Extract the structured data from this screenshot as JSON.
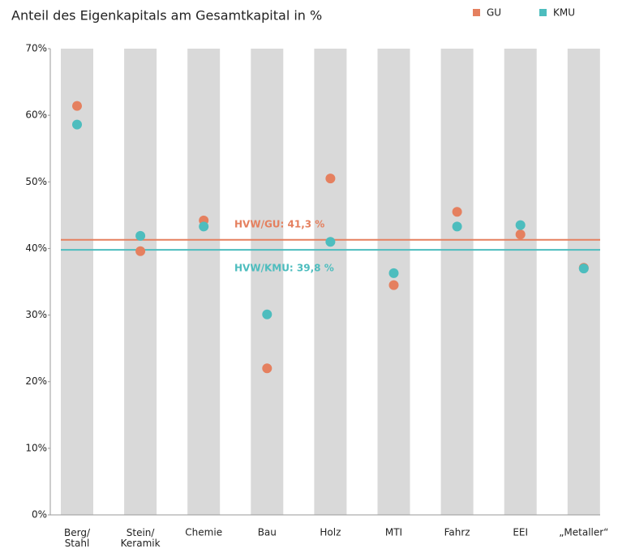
{
  "chart_data": {
    "type": "dot",
    "title": "Anteil des Eigenkapitals am Gesamtkapital in %",
    "categories": [
      "Berg/\nStahl",
      "Stein/\nKeramik",
      "Chemie",
      "Bau",
      "Holz",
      "MTI",
      "Fahrz",
      "EEI",
      "„Metaller“"
    ],
    "series": [
      {
        "name": "GU",
        "color": "#e5805f",
        "values": [
          61.4,
          39.6,
          44.2,
          22.0,
          50.5,
          34.5,
          45.5,
          42.1,
          37.1
        ]
      },
      {
        "name": "KMU",
        "color": "#4dbdbe",
        "values": [
          58.6,
          41.9,
          43.3,
          30.1,
          41.0,
          36.3,
          43.3,
          43.5,
          37.0
        ]
      }
    ],
    "reference_lines": [
      {
        "value": 41.3,
        "label": "HVW/GU: 41,3 %",
        "color": "#e5805f"
      },
      {
        "value": 39.8,
        "label": "HVW/KMU: 39,8 %",
        "color": "#4dbdbe"
      }
    ],
    "ylim": [
      0,
      70
    ],
    "yticks": [
      {
        "value": 0,
        "label": "0%"
      },
      {
        "value": 10,
        "label": "10%"
      },
      {
        "value": 20,
        "label": "20%"
      },
      {
        "value": 30,
        "label": "30%"
      },
      {
        "value": 40,
        "label": "40%"
      },
      {
        "value": 50,
        "label": "50%"
      },
      {
        "value": 60,
        "label": "60%"
      },
      {
        "value": 70,
        "label": "70%"
      }
    ],
    "legend": "top-right"
  }
}
